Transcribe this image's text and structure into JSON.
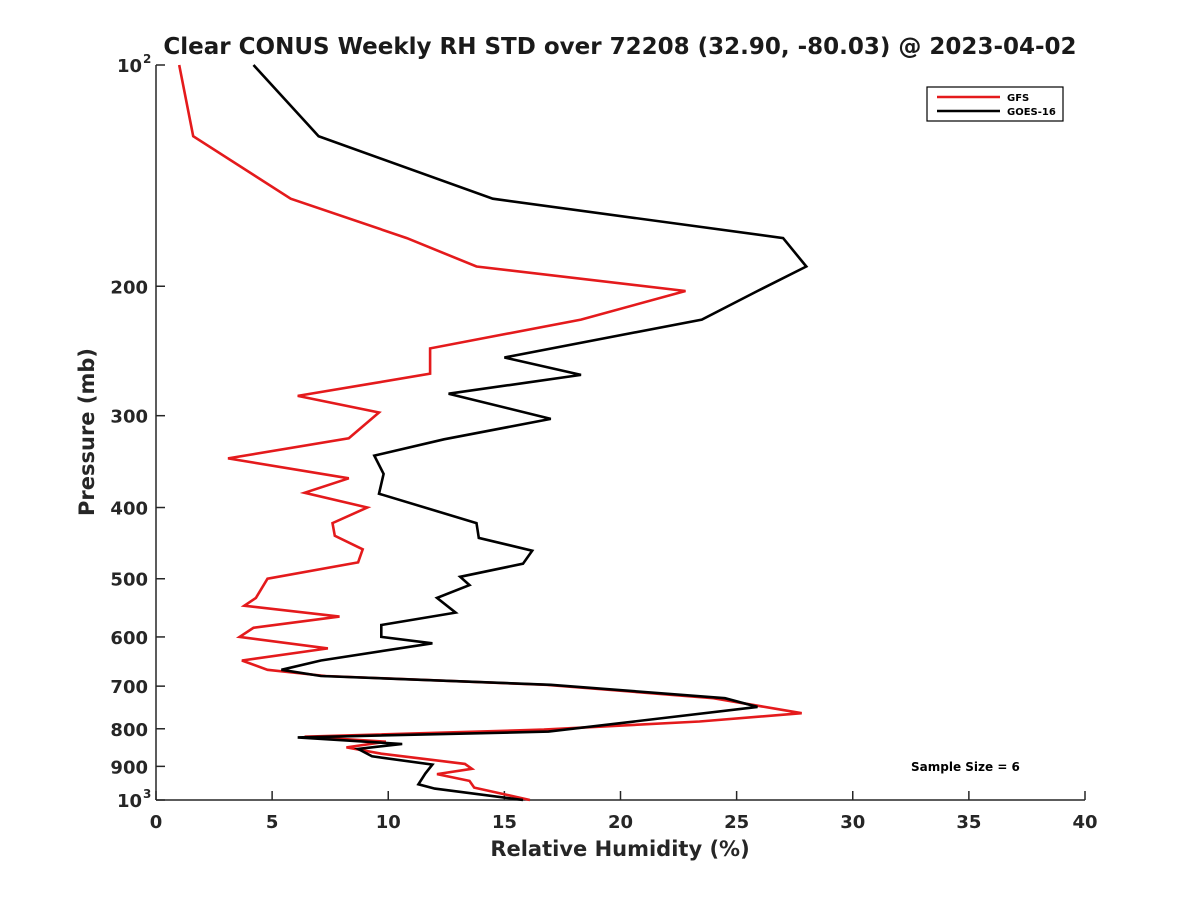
{
  "chart_data": {
    "type": "line",
    "title": "Clear CONUS Weekly RH STD over 72208 (32.90, -80.03) @ 2023-04-02",
    "xlabel": "Relative Humidity (%)",
    "ylabel": "Pressure (mb)",
    "xlim": [
      0,
      40
    ],
    "ylim": [
      100,
      1000
    ],
    "y_scale": "log",
    "y_reversed": true,
    "xticks": [
      0,
      5,
      10,
      15,
      20,
      25,
      30,
      35,
      40
    ],
    "yticks": [
      {
        "value": 100,
        "label": "10",
        "sup": "2"
      },
      {
        "value": 200,
        "label": "200",
        "sup": ""
      },
      {
        "value": 300,
        "label": "300",
        "sup": ""
      },
      {
        "value": 400,
        "label": "400",
        "sup": ""
      },
      {
        "value": 500,
        "label": "500",
        "sup": ""
      },
      {
        "value": 600,
        "label": "600",
        "sup": ""
      },
      {
        "value": 700,
        "label": "700",
        "sup": ""
      },
      {
        "value": 800,
        "label": "800",
        "sup": ""
      },
      {
        "value": 900,
        "label": "900",
        "sup": ""
      },
      {
        "value": 1000,
        "label": "10",
        "sup": "3"
      }
    ],
    "grid": false,
    "legend_position": "top-right",
    "annotation": "Sample Size = 6",
    "series": [
      {
        "name": "GFS",
        "color": "#e41a1c",
        "points": [
          [
            1.0,
            100
          ],
          [
            1.6,
            125
          ],
          [
            5.8,
            152
          ],
          [
            10.8,
            172
          ],
          [
            13.8,
            188
          ],
          [
            22.8,
            203
          ],
          [
            18.3,
            222
          ],
          [
            11.8,
            243
          ],
          [
            11.8,
            263
          ],
          [
            6.1,
            282
          ],
          [
            9.6,
            297
          ],
          [
            8.3,
            322
          ],
          [
            3.1,
            343
          ],
          [
            8.3,
            365
          ],
          [
            6.4,
            382
          ],
          [
            9.1,
            400
          ],
          [
            7.6,
            420
          ],
          [
            7.7,
            437
          ],
          [
            8.9,
            456
          ],
          [
            8.7,
            475
          ],
          [
            4.8,
            500
          ],
          [
            4.3,
            531
          ],
          [
            3.8,
            544
          ],
          [
            7.9,
            563
          ],
          [
            4.2,
            583
          ],
          [
            3.6,
            600
          ],
          [
            7.4,
            622
          ],
          [
            3.7,
            646
          ],
          [
            4.8,
            665
          ],
          [
            7.3,
            678
          ],
          [
            16.8,
            697
          ],
          [
            24.0,
            727
          ],
          [
            27.8,
            762
          ],
          [
            23.4,
            782
          ],
          [
            16.7,
            802
          ],
          [
            6.4,
            820
          ],
          [
            9.9,
            833
          ],
          [
            8.2,
            848
          ],
          [
            9.7,
            865
          ],
          [
            13.3,
            893
          ],
          [
            13.6,
            907
          ],
          [
            12.1,
            922
          ],
          [
            13.5,
            942
          ],
          [
            13.7,
            962
          ],
          [
            16.1,
            1000
          ]
        ]
      },
      {
        "name": "GOES-16",
        "color": "#000000",
        "points": [
          [
            4.2,
            100
          ],
          [
            7.0,
            125
          ],
          [
            14.5,
            152
          ],
          [
            27.0,
            172
          ],
          [
            28.0,
            188
          ],
          [
            25.9,
            203
          ],
          [
            23.5,
            222
          ],
          [
            15.0,
            250
          ],
          [
            18.3,
            264
          ],
          [
            12.6,
            280
          ],
          [
            17.0,
            303
          ],
          [
            12.4,
            323
          ],
          [
            9.4,
            340
          ],
          [
            9.8,
            360
          ],
          [
            9.6,
            383
          ],
          [
            13.8,
            420
          ],
          [
            13.9,
            440
          ],
          [
            16.2,
            458
          ],
          [
            15.8,
            477
          ],
          [
            13.1,
            497
          ],
          [
            13.5,
            510
          ],
          [
            12.1,
            531
          ],
          [
            12.9,
            556
          ],
          [
            9.7,
            578
          ],
          [
            9.7,
            600
          ],
          [
            11.9,
            612
          ],
          [
            7.1,
            646
          ],
          [
            5.4,
            665
          ],
          [
            7.1,
            678
          ],
          [
            17.0,
            697
          ],
          [
            24.5,
            727
          ],
          [
            25.9,
            747
          ],
          [
            16.9,
            807
          ],
          [
            6.1,
            822
          ],
          [
            10.6,
            839
          ],
          [
            8.7,
            852
          ],
          [
            9.3,
            872
          ],
          [
            11.9,
            895
          ],
          [
            11.6,
            920
          ],
          [
            11.3,
            952
          ],
          [
            12.0,
            965
          ],
          [
            15.8,
            1000
          ]
        ]
      }
    ]
  }
}
